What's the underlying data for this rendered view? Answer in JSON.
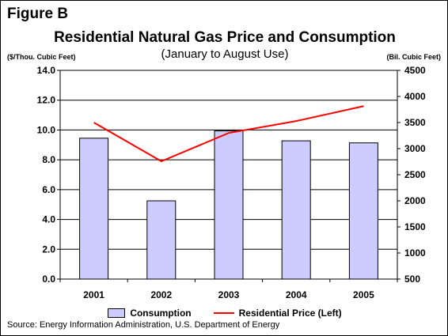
{
  "figure_label": "Figure B",
  "chart_data": {
    "type": "bar",
    "title": "Residential Natural Gas Price and Consumption",
    "subtitle": "(January to August Use)",
    "categories": [
      "2001",
      "2002",
      "2003",
      "2004",
      "2005"
    ],
    "series": [
      {
        "name": "Consumption",
        "type": "bar",
        "axis": "right",
        "values": [
          3200,
          2000,
          3340,
          3150,
          3110
        ],
        "color": "#ccccff"
      },
      {
        "name": "Residential Price (Left)",
        "type": "line",
        "axis": "left",
        "values": [
          10.5,
          7.9,
          9.8,
          10.6,
          11.6
        ],
        "color": "#ff0000"
      }
    ],
    "y_left": {
      "label": "($/Thou. Cubic Feet)",
      "min": 0,
      "max": 14,
      "step": 2,
      "ticks": [
        "0.0",
        "2.0",
        "4.0",
        "6.0",
        "8.0",
        "10.0",
        "12.0",
        "14.0"
      ]
    },
    "y_right": {
      "label": "(Bil. Cubic Feet)",
      "min": 500,
      "max": 4500,
      "step": 500,
      "ticks": [
        "500",
        "1000",
        "1500",
        "2000",
        "2500",
        "3000",
        "3500",
        "4000",
        "4500"
      ]
    },
    "grid": true,
    "legend_position": "bottom"
  },
  "source": "Source: Energy Information Administration, U.S. Department of Energy"
}
